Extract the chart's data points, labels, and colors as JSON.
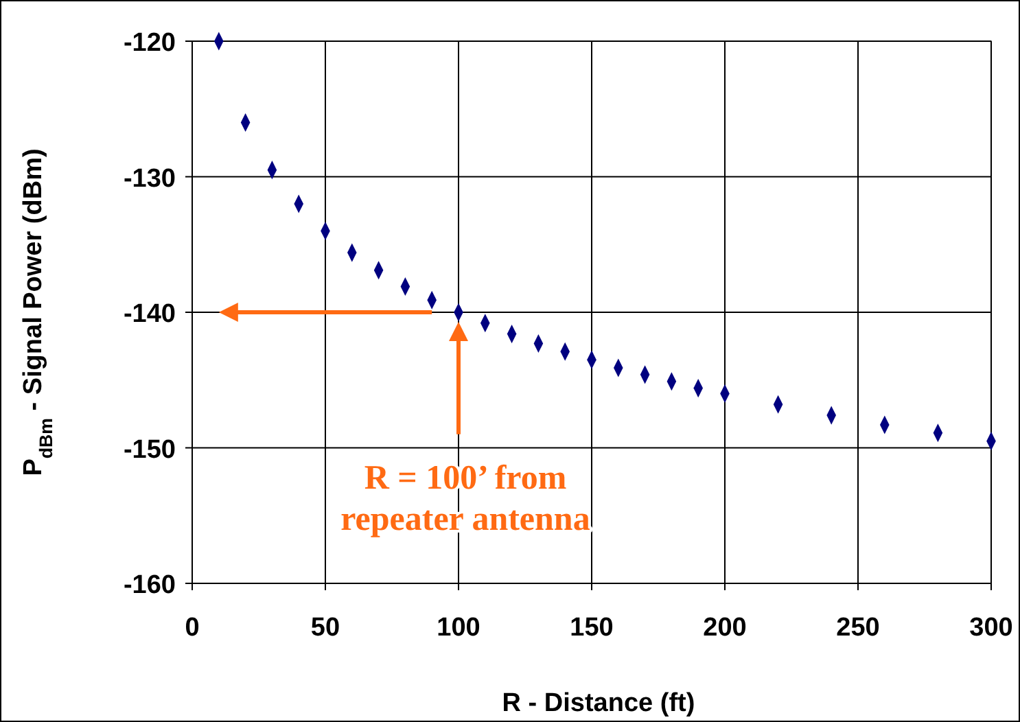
{
  "chart_data": {
    "type": "scatter",
    "xlabel": "R - Distance (ft)",
    "ylabel": "P$_{dBm}$ - Signal Power (dBm)",
    "x": [
      10,
      20,
      30,
      40,
      50,
      60,
      70,
      80,
      90,
      100,
      110,
      120,
      130,
      140,
      150,
      160,
      170,
      180,
      190,
      200,
      220,
      240,
      260,
      280,
      300
    ],
    "series": [
      {
        "color": "#000080",
        "values": [
          -120,
          -126,
          -129.5,
          -132,
          -134,
          -135.6,
          -136.9,
          -138.1,
          -139.1,
          -140,
          -140.8,
          -141.6,
          -142.3,
          -142.9,
          -143.5,
          -144.1,
          -144.6,
          -145.1,
          -145.6,
          -146,
          -146.8,
          -147.6,
          -148.3,
          -148.9,
          -149.5
        ]
      }
    ],
    "xlim": [
      0,
      300
    ],
    "xticks": [
      0,
      50,
      100,
      150,
      200,
      250,
      300
    ],
    "ylim": [
      -160,
      -120
    ],
    "yticks": [
      -120,
      -130,
      -140,
      -150,
      -160
    ],
    "grid": true,
    "marker": "diamond",
    "annotations": [
      "R = 100’ from\nrepeater antenna"
    ]
  }
}
